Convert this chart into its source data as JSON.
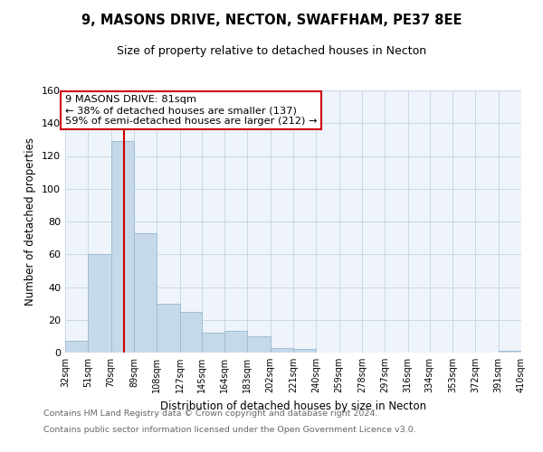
{
  "title": "9, MASONS DRIVE, NECTON, SWAFFHAM, PE37 8EE",
  "subtitle": "Size of property relative to detached houses in Necton",
  "xlabel": "Distribution of detached houses by size in Necton",
  "ylabel": "Number of detached properties",
  "bar_color": "#c5d9ea",
  "bar_edge_color": "#a0bdd4",
  "marker_line_color": "#cc0000",
  "annotation_box_color": "#cc0000",
  "background_color": "#ffffff",
  "plot_bg_color": "#eef4fa",
  "grid_color": "#c8d8e8",
  "bins": [
    32,
    51,
    70,
    89,
    108,
    127,
    145,
    164,
    183,
    202,
    221,
    240,
    259,
    278,
    297,
    316,
    334,
    353,
    372,
    391,
    410
  ],
  "bin_labels": [
    "32sqm",
    "51sqm",
    "70sqm",
    "89sqm",
    "108sqm",
    "127sqm",
    "145sqm",
    "164sqm",
    "183sqm",
    "202sqm",
    "221sqm",
    "240sqm",
    "259sqm",
    "278sqm",
    "297sqm",
    "316sqm",
    "334sqm",
    "353sqm",
    "372sqm",
    "391sqm",
    "410sqm"
  ],
  "counts": [
    7,
    60,
    129,
    73,
    30,
    25,
    12,
    13,
    10,
    3,
    2,
    0,
    0,
    0,
    0,
    0,
    0,
    0,
    0,
    1
  ],
  "ylim": [
    0,
    160
  ],
  "yticks": [
    0,
    20,
    40,
    60,
    80,
    100,
    120,
    140,
    160
  ],
  "marker_value": 81,
  "annotation_title": "9 MASONS DRIVE: 81sqm",
  "annotation_line1": "← 38% of detached houses are smaller (137)",
  "annotation_line2": "59% of semi-detached houses are larger (212) →",
  "footer_line1": "Contains HM Land Registry data © Crown copyright and database right 2024.",
  "footer_line2": "Contains public sector information licensed under the Open Government Licence v3.0."
}
